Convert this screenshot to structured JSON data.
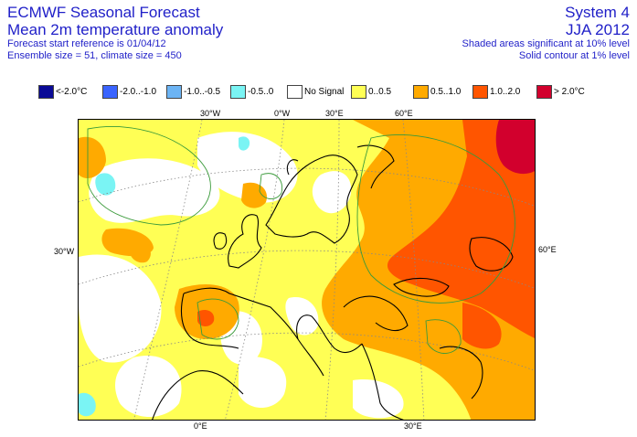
{
  "header": {
    "title_line1": "ECMWF Seasonal Forecast",
    "title_line2": "Mean 2m temperature anomaly",
    "info_line1": "Forecast start reference is 01/04/12",
    "info_line2": "Ensemble size = 51, climate size = 450",
    "system": "System 4",
    "season": "JJA 2012",
    "note_line1": "Shaded areas significant at 10% level",
    "note_line2": "Solid contour at 1% level"
  },
  "legend": [
    {
      "label": "<-2.0°C",
      "color": "#0a0a96"
    },
    {
      "label": "-2.0..-1.0",
      "color": "#3a64ff"
    },
    {
      "label": "-1.0..-0.5",
      "color": "#6cb4f4"
    },
    {
      "label": "-0.5..0",
      "color": "#7af4f4"
    },
    {
      "label": "No Signal",
      "color": "#ffffff"
    },
    {
      "label": "0..0.5",
      "color": "#ffff55"
    },
    {
      "label": "0.5..1.0",
      "color": "#ffaa00"
    },
    {
      "label": "1.0..2.0",
      "color": "#ff5500"
    },
    {
      "label": "> 2.0°C",
      "color": "#d2002d"
    }
  ],
  "map": {
    "top_labels": [
      "30°W",
      "0°W",
      "30°E",
      "60°E"
    ],
    "left_label": "30°W",
    "right_label": "60°E",
    "bottom_labels": [
      "0°E",
      "30°E"
    ]
  }
}
